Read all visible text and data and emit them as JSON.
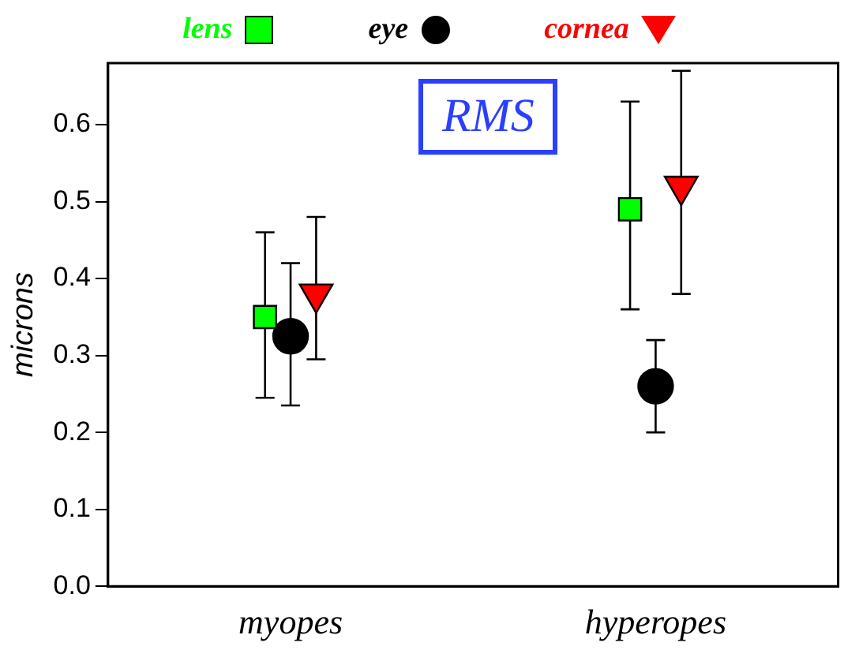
{
  "chart_data": {
    "type": "scatter",
    "ylabel": "microns",
    "categories": [
      "myopes",
      "hyperopes"
    ],
    "series": [
      {
        "name": "lens",
        "color": "#00ff00",
        "marker": "square",
        "values": [
          0.35,
          0.49
        ],
        "errors": [
          [
            0.245,
            0.46
          ],
          [
            0.36,
            0.63
          ]
        ]
      },
      {
        "name": "eye",
        "color": "#000000",
        "marker": "circle",
        "values": [
          0.325,
          0.26
        ],
        "errors": [
          [
            0.235,
            0.42
          ],
          [
            0.2,
            0.32
          ]
        ]
      },
      {
        "name": "cornea",
        "color": "#ff0000",
        "marker": "triangle",
        "values": [
          0.38,
          0.52
        ],
        "errors": [
          [
            0.295,
            0.48
          ],
          [
            0.38,
            0.67
          ]
        ]
      }
    ],
    "ylim": [
      0,
      0.68
    ],
    "yticks": [
      {
        "value": 0,
        "label": "0.0"
      },
      0.1,
      0.2,
      0.3,
      0.4,
      0.5,
      0.6
    ],
    "grid": false,
    "legend": "top",
    "annotations": [
      "RMS"
    ]
  }
}
